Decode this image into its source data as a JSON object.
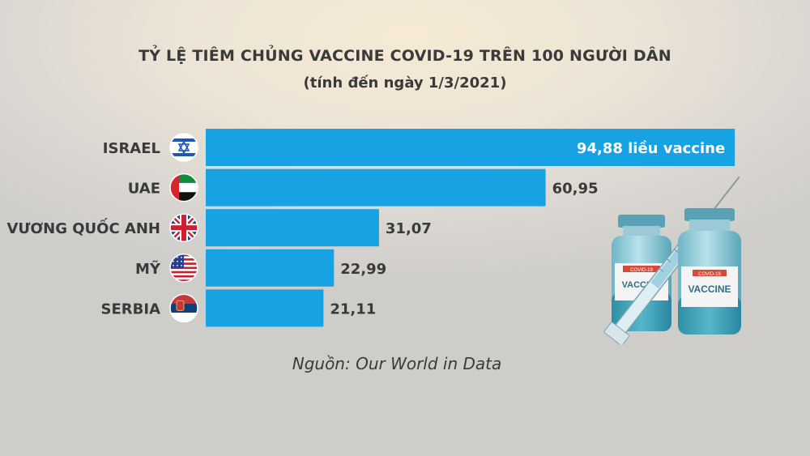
{
  "title": "TỶ LỆ TIÊM CHỦNG VACCINE COVID-19 TRÊN 100 NGƯỜI DÂN",
  "subtitle": "(tính đến ngày 1/3/2021)",
  "source": "Nguồn: Our World in Data",
  "colors": {
    "bar": "#17a3e3",
    "text": "#3a3a3a",
    "inside_label": "#ffffff"
  },
  "illustration": {
    "label_small": "COVID-19",
    "label_big": "VACCINE",
    "icon": "vaccine-vials-syringe-icon"
  },
  "chart_data": {
    "type": "bar",
    "orientation": "horizontal",
    "categories": [
      "ISRAEL",
      "UAE",
      "VƯƠNG QUỐC ANH",
      "MỸ",
      "SERBIA"
    ],
    "flags": [
      "israel-flag-icon",
      "uae-flag-icon",
      "uk-flag-icon",
      "usa-flag-icon",
      "serbia-flag-icon"
    ],
    "values": [
      94.88,
      60.95,
      31.07,
      22.99,
      21.11
    ],
    "data_labels": [
      "94,88 liều vaccine",
      "60,95",
      "31,07",
      "22,99",
      "21,11"
    ],
    "xlim": [
      0,
      95
    ],
    "grid": false,
    "legend": "none"
  }
}
